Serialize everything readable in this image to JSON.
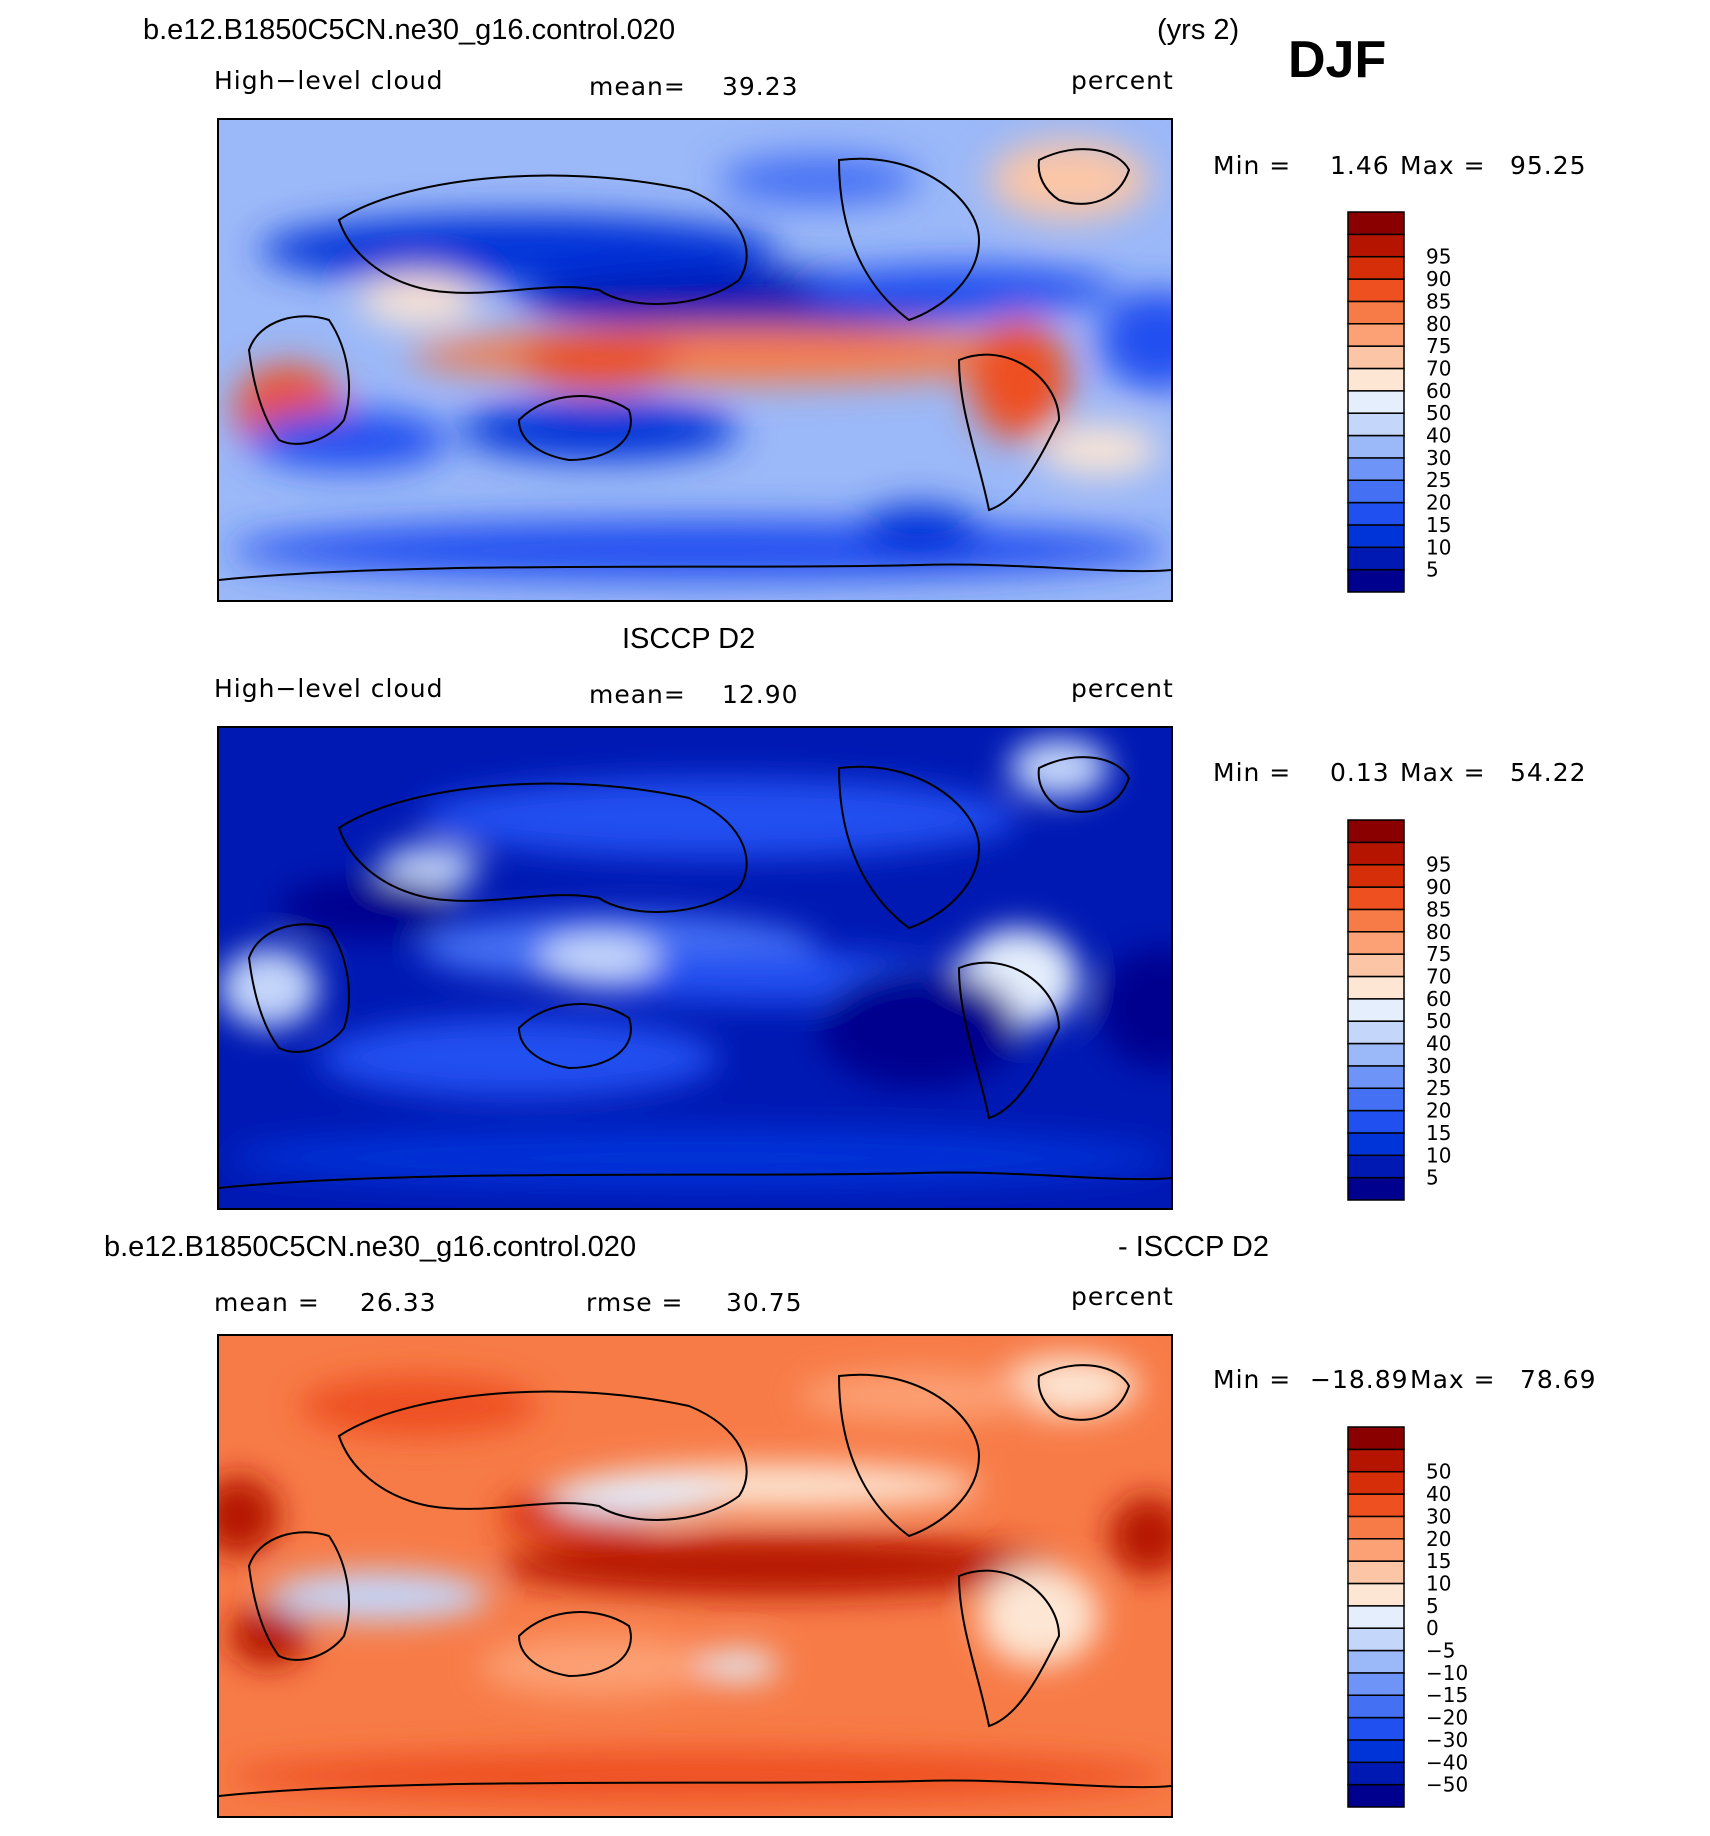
{
  "figure": {
    "case_title_top": "b.e12.B1850C5CN.ne30_g16.control.020",
    "years": "(yrs 2)",
    "season": "DJF",
    "obs_title": "ISCCP D2",
    "diff_case_title": "b.e12.B1850C5CN.ne30_g16.control.020",
    "diff_obs_title": "- ISCCP D2"
  },
  "panels": [
    {
      "id": "model",
      "variable": "High−level cloud",
      "mean_label": "mean=",
      "mean_value": "39.23",
      "units": "percent",
      "min_label": "Min =",
      "min_value": "1.46",
      "max_label": "Max =",
      "max_value": "95.25"
    },
    {
      "id": "obs",
      "variable": "High−level cloud",
      "mean_label": "mean=",
      "mean_value": "12.90",
      "units": "percent",
      "min_label": "Min =",
      "min_value": "0.13",
      "max_label": "Max =",
      "max_value": "54.22"
    },
    {
      "id": "diff",
      "mean_label": "mean =",
      "mean_value": "26.33",
      "rmse_label": "rmse =",
      "rmse_value": "30.75",
      "units": "percent",
      "min_label": "Min =",
      "min_value": "−18.89",
      "max_label": "Max =",
      "max_value": "78.69"
    }
  ],
  "chart_data": [
    {
      "type": "heatmap",
      "title": "b.e12.B1850C5CN.ne30_g16.control.020 (yrs 2) DJF",
      "subtitle": "High-level cloud",
      "units": "percent",
      "mean": 39.23,
      "min": 1.46,
      "max": 95.25,
      "colorbar_levels": [
        5,
        10,
        15,
        20,
        25,
        30,
        40,
        50,
        60,
        70,
        75,
        80,
        85,
        90,
        95
      ],
      "colorbar_colors": [
        "#00008e",
        "#0019b3",
        "#0033d8",
        "#2050f0",
        "#4470f4",
        "#6d94f6",
        "#9bb8f8",
        "#c4d6fa",
        "#e4eefc",
        "#fde6d4",
        "#fcc6a6",
        "#fca075",
        "#f77b47",
        "#ee5020",
        "#d52e08",
        "#b51400",
        "#8a0000"
      ],
      "colorbar_labels": [
        "5",
        "10",
        "15",
        "20",
        "25",
        "30",
        "40",
        "50",
        "60",
        "70",
        "75",
        "80",
        "85",
        "90",
        "95"
      ]
    },
    {
      "type": "heatmap",
      "title": "ISCCP D2",
      "subtitle": "High-level cloud",
      "units": "percent",
      "mean": 12.9,
      "min": 0.13,
      "max": 54.22,
      "colorbar_levels": [
        5,
        10,
        15,
        20,
        25,
        30,
        40,
        50,
        60,
        70,
        75,
        80,
        85,
        90,
        95
      ],
      "colorbar_colors": [
        "#00008e",
        "#0019b3",
        "#0033d8",
        "#2050f0",
        "#4470f4",
        "#6d94f6",
        "#9bb8f8",
        "#c4d6fa",
        "#e4eefc",
        "#fde6d4",
        "#fcc6a6",
        "#fca075",
        "#f77b47",
        "#ee5020",
        "#d52e08",
        "#b51400",
        "#8a0000"
      ],
      "colorbar_labels": [
        "5",
        "10",
        "15",
        "20",
        "25",
        "30",
        "40",
        "50",
        "60",
        "70",
        "75",
        "80",
        "85",
        "90",
        "95"
      ]
    },
    {
      "type": "heatmap",
      "title": "b.e12.B1850C5CN.ne30_g16.control.020 - ISCCP D2",
      "units": "percent",
      "mean": 26.33,
      "rmse": 30.75,
      "min": -18.89,
      "max": 78.69,
      "colorbar_levels": [
        -50,
        -40,
        -30,
        -20,
        -15,
        -10,
        -5,
        0,
        5,
        10,
        15,
        20,
        30,
        40,
        50
      ],
      "colorbar_colors": [
        "#00008e",
        "#0019b3",
        "#0033d8",
        "#2050f0",
        "#4470f4",
        "#6d94f6",
        "#9bb8f8",
        "#c4d6fa",
        "#e4eefc",
        "#fde6d4",
        "#fcc6a6",
        "#fca075",
        "#f77b47",
        "#ee5020",
        "#d52e08",
        "#b51400",
        "#8a0000"
      ],
      "colorbar_labels": [
        "−50",
        "−40",
        "−30",
        "−20",
        "−15",
        "−10",
        "−5",
        "0",
        "5",
        "10",
        "15",
        "20",
        "30",
        "40",
        "50"
      ]
    }
  ]
}
